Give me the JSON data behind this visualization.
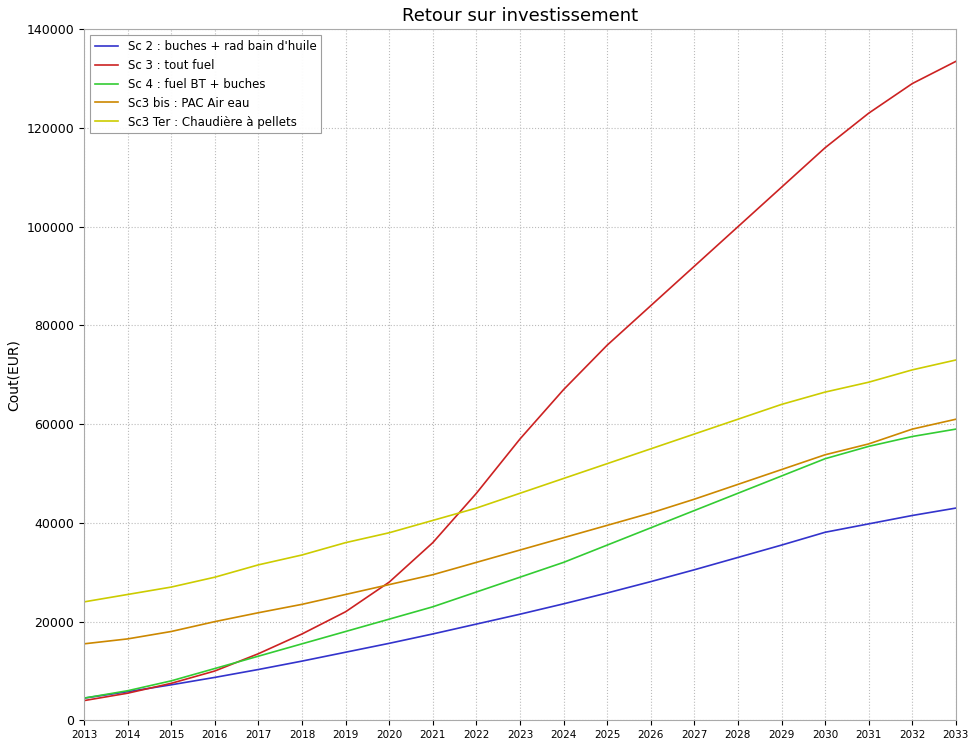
{
  "title": "Retour sur investissement",
  "xlabel": "",
  "ylabel": "Cout(EUR)",
  "years": [
    2013,
    2014,
    2015,
    2016,
    2017,
    2018,
    2019,
    2020,
    2021,
    2022,
    2023,
    2024,
    2025,
    2026,
    2027,
    2028,
    2029,
    2030,
    2031,
    2032,
    2033
  ],
  "series": [
    {
      "label": "Sc 2 : buches + rad bain d'huile",
      "color": "#3333cc",
      "values": [
        4500,
        5800,
        7200,
        8700,
        10300,
        12000,
        13800,
        15600,
        17500,
        19500,
        21500,
        23600,
        25800,
        28100,
        30500,
        33000,
        35500,
        38100,
        39800,
        41500,
        43000
      ]
    },
    {
      "label": "Sc 3 : tout fuel",
      "color": "#cc2222",
      "values": [
        4000,
        5500,
        7500,
        10000,
        13500,
        17500,
        22000,
        28000,
        36000,
        46000,
        57000,
        67000,
        76000,
        84000,
        92000,
        100000,
        108000,
        116000,
        123000,
        129000,
        133500
      ]
    },
    {
      "label": "Sc 4 : fuel BT + buches",
      "color": "#33cc33",
      "values": [
        4500,
        6000,
        8000,
        10500,
        13000,
        15500,
        18000,
        20500,
        23000,
        26000,
        29000,
        32000,
        35500,
        39000,
        42500,
        46000,
        49500,
        53000,
        55500,
        57500,
        59000
      ]
    },
    {
      "label": "Sc3 bis : PAC Air eau",
      "color": "#cc8800",
      "values": [
        15500,
        16500,
        18000,
        20000,
        21800,
        23500,
        25500,
        27500,
        29500,
        32000,
        34500,
        37000,
        39500,
        42000,
        44800,
        47800,
        50800,
        53800,
        56000,
        59000,
        61000
      ]
    },
    {
      "label": "Sc3 Ter : Chaudière à pellets",
      "color": "#cccc00",
      "values": [
        24000,
        25500,
        27000,
        29000,
        31500,
        33500,
        36000,
        38000,
        40500,
        43000,
        46000,
        49000,
        52000,
        55000,
        58000,
        61000,
        64000,
        66500,
        68500,
        71000,
        73000
      ]
    }
  ],
  "ylim": [
    0,
    140000
  ],
  "xlim": [
    2013,
    2033
  ],
  "ytick_interval": 20000,
  "background_color": "#ffffff",
  "grid_color": "#bbbbbb",
  "title_fontsize": 13,
  "label_fontsize": 10,
  "figsize": [
    9.76,
    7.47
  ],
  "dpi": 100
}
